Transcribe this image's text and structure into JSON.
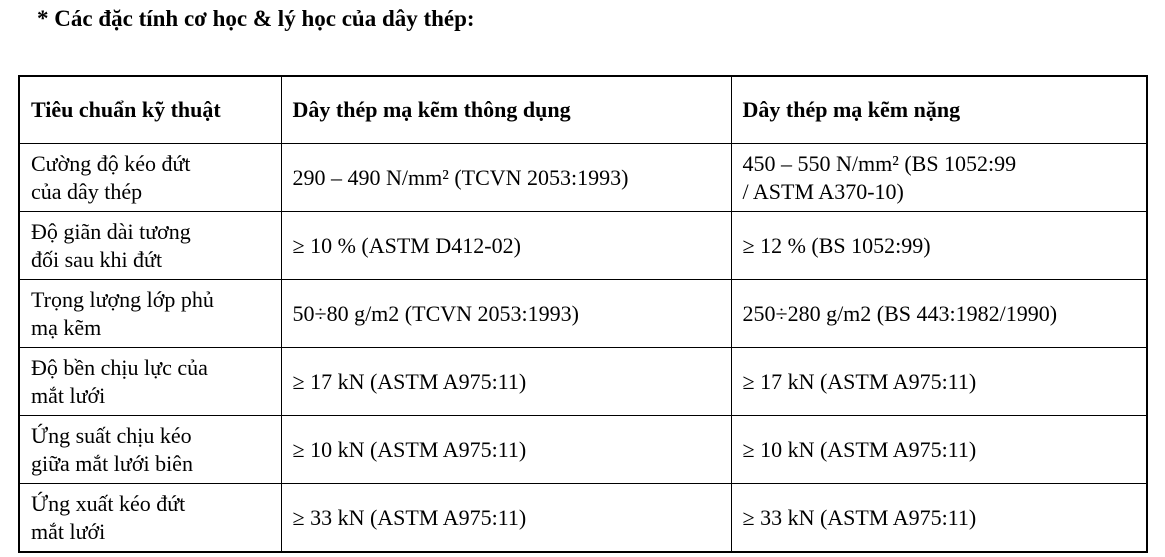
{
  "page": {
    "title": "* Các đặc tính cơ học & lý học của dây thép:"
  },
  "colors": {
    "text": "#000000",
    "border": "#000000",
    "background": "#ffffff"
  },
  "table": {
    "headers": [
      "Tiêu chuẩn kỹ thuật",
      "Dây thép mạ kẽm thông dụng",
      "Dây thép mạ kẽm nặng"
    ],
    "rows": [
      {
        "property": "Cường độ kéo đứt\ncủa dây thép",
        "common": "290 – 490 N/mm² (TCVN 2053:1993)",
        "heavy": "450 – 550 N/mm² (BS 1052:99\n/ ASTM A370-10)"
      },
      {
        "property": "Độ giãn dài tương\nđối sau khi đứt",
        "common": "≥ 10 % (ASTM D412-02)",
        "heavy": "≥ 12 % (BS 1052:99)"
      },
      {
        "property": "Trọng lượng lớp phủ\nmạ kẽm",
        "common": "50÷80 g/m2 (TCVN 2053:1993)",
        "heavy": "250÷280 g/m2 (BS 443:1982/1990)"
      },
      {
        "property": "Độ bền chịu lực của\nmắt lưới",
        "common": "≥ 17 kN (ASTM A975:11)",
        "heavy": "≥ 17 kN (ASTM A975:11)"
      },
      {
        "property": "Ứng suất chịu kéo\ngiữa mắt lưới biên",
        "common": "≥ 10 kN (ASTM A975:11)",
        "heavy": "≥ 10 kN (ASTM A975:11)"
      },
      {
        "property": "Ứng xuất kéo đứt\nmắt lưới",
        "common": "≥ 33 kN (ASTM A975:11)",
        "heavy": "≥ 33 kN (ASTM A975:11)"
      }
    ]
  }
}
